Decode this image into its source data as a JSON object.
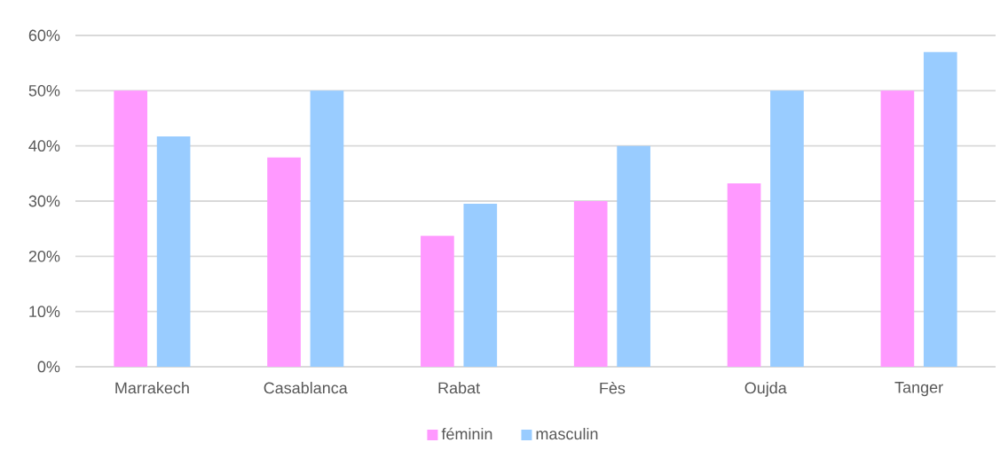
{
  "chart_data": {
    "type": "bar",
    "categories": [
      "Marrakech",
      "Casablanca",
      "Rabat",
      "Fès",
      "Oujda",
      "Tanger"
    ],
    "series": [
      {
        "name": "féminin",
        "color": "#ff99ff",
        "values": [
          50,
          37.9,
          23.7,
          30,
          33.2,
          50
        ]
      },
      {
        "name": "masculin",
        "color": "#99ccff",
        "values": [
          41.7,
          50,
          29.5,
          40,
          50,
          57
        ]
      }
    ],
    "ylim": [
      0,
      60
    ],
    "yticks": [
      {
        "value": 0,
        "label": "0%"
      },
      {
        "value": 10,
        "label": "10%"
      },
      {
        "value": 20,
        "label": "20%"
      },
      {
        "value": 30,
        "label": "30%"
      },
      {
        "value": 40,
        "label": "40%"
      },
      {
        "value": 50,
        "label": "50%"
      },
      {
        "value": 60,
        "label": "60%"
      }
    ],
    "grid": "y",
    "legend": "bottom"
  }
}
